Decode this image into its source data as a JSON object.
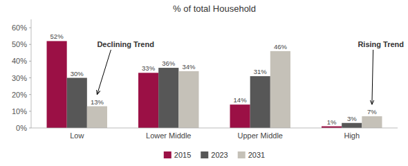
{
  "chart_data": {
    "type": "bar",
    "title": "% of total Household",
    "categories": [
      "Low",
      "Lower Middle",
      "Upper Middle",
      "High"
    ],
    "series": [
      {
        "name": "2015",
        "color": "#9B1045",
        "values": [
          52,
          33,
          14,
          1
        ],
        "value_labels": [
          "52%",
          "33%",
          "14%",
          "1%"
        ]
      },
      {
        "name": "2023",
        "color": "#575757",
        "values": [
          30,
          36,
          31,
          3
        ],
        "value_labels": [
          "30%",
          "36%",
          "31%",
          "3%"
        ]
      },
      {
        "name": "2031",
        "color": "#C5C1B8",
        "values": [
          13,
          34,
          46,
          7
        ],
        "value_labels": [
          "13%",
          "34%",
          "46%",
          "7%"
        ]
      }
    ],
    "ylim": [
      0,
      65
    ],
    "yticks": [
      {
        "value": 0,
        "label": "0%"
      },
      {
        "value": 10,
        "label": "10%"
      },
      {
        "value": 20,
        "label": "20%"
      },
      {
        "value": 30,
        "label": "30%"
      },
      {
        "value": 40,
        "label": "40%"
      },
      {
        "value": 50,
        "label": "50%"
      },
      {
        "value": 60,
        "label": "60%"
      }
    ],
    "data_labels": true,
    "grid": false,
    "legend": "bottom",
    "annotations": [
      {
        "text": "Declining Trend"
      },
      {
        "text": "Rising Trend"
      }
    ]
  }
}
